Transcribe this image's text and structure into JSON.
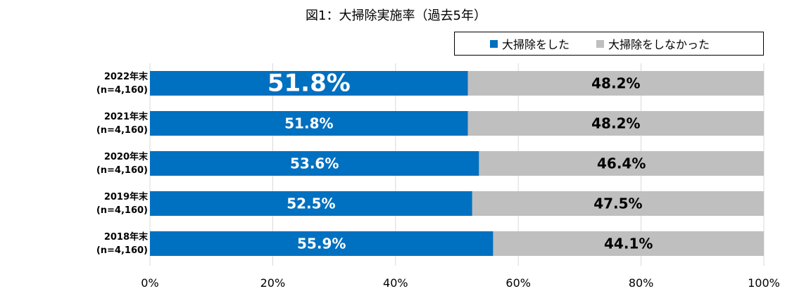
{
  "chart_data": {
    "type": "bar",
    "orientation": "horizontal",
    "stacked": true,
    "percent": true,
    "title": "図1：大掃除実施率（過去5年）",
    "categories": [
      {
        "year": "2022年末",
        "n": "(n=4,160)"
      },
      {
        "year": "2021年末",
        "n": "(n=4,160)"
      },
      {
        "year": "2020年末",
        "n": "(n=4,160)"
      },
      {
        "year": "2019年末",
        "n": "(n=4,160)"
      },
      {
        "year": "2018年末",
        "n": "(n=4,160)"
      }
    ],
    "series": [
      {
        "name": "大掃除をした",
        "color": "#0070C0",
        "label_color": "#ffffff",
        "values": [
          51.8,
          51.8,
          53.6,
          52.5,
          55.9
        ],
        "labels": [
          "51.8%",
          "51.8%",
          "53.6%",
          "52.5%",
          "55.9%"
        ]
      },
      {
        "name": "大掃除をしなかった",
        "color": "#BFBFBF",
        "label_color": "#000000",
        "values": [
          48.2,
          48.2,
          46.4,
          47.5,
          44.1
        ],
        "labels": [
          "48.2%",
          "48.2%",
          "46.4%",
          "47.5%",
          "44.1%"
        ]
      }
    ],
    "emphasized_label": "2022年末 大掃除をした",
    "xlim": [
      0,
      100
    ],
    "xticks": [
      "0%",
      "20%",
      "40%",
      "60%",
      "80%",
      "100%"
    ],
    "grid": true,
    "legend_position": "top-right"
  }
}
